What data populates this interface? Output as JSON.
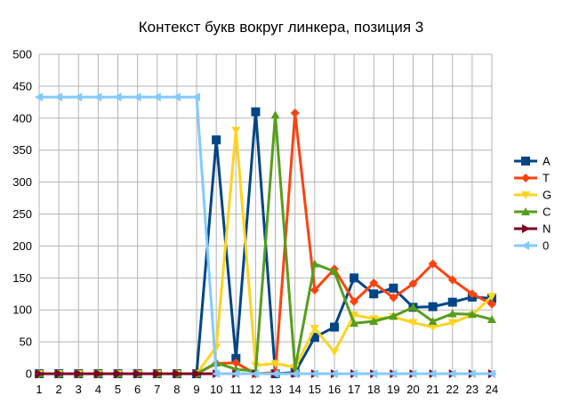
{
  "chart_data": {
    "type": "line",
    "title": "Контекст букв вокруг линкера, позиция 3",
    "xlabel": "",
    "ylabel": "",
    "x": [
      1,
      2,
      3,
      4,
      5,
      6,
      7,
      8,
      9,
      10,
      11,
      12,
      13,
      14,
      15,
      16,
      17,
      18,
      19,
      20,
      21,
      22,
      23,
      24
    ],
    "ylim": [
      0,
      500
    ],
    "yticks": [
      0,
      50,
      100,
      150,
      200,
      250,
      300,
      350,
      400,
      450,
      500
    ],
    "grid": true,
    "legend_position": "right",
    "series": [
      {
        "name": "A",
        "color": "#004586",
        "marker": "square",
        "values": [
          0,
          0,
          0,
          0,
          0,
          0,
          0,
          0,
          0,
          366,
          24,
          410,
          0,
          2,
          57,
          73,
          150,
          125,
          134,
          104,
          105,
          112,
          120,
          118
        ]
      },
      {
        "name": "T",
        "color": "#ff420e",
        "marker": "diamond",
        "values": [
          0,
          0,
          0,
          0,
          0,
          0,
          0,
          0,
          0,
          16,
          17,
          0,
          2,
          408,
          131,
          164,
          113,
          142,
          119,
          141,
          172,
          147,
          125,
          109
        ]
      },
      {
        "name": "G",
        "color": "#ffd320",
        "marker": "triangle-down",
        "values": [
          0,
          0,
          0,
          0,
          0,
          0,
          0,
          0,
          0,
          42,
          381,
          13,
          16,
          10,
          71,
          34,
          92,
          86,
          89,
          80,
          73,
          80,
          92,
          121
        ]
      },
      {
        "name": "C",
        "color": "#579d1c",
        "marker": "triangle-up",
        "values": [
          0,
          0,
          0,
          0,
          0,
          0,
          0,
          0,
          0,
          17,
          7,
          4,
          405,
          8,
          172,
          160,
          79,
          82,
          90,
          104,
          82,
          94,
          93,
          85
        ]
      },
      {
        "name": "N",
        "color": "#7e0021",
        "marker": "triangle-right",
        "values": [
          0,
          0,
          0,
          0,
          0,
          0,
          0,
          0,
          0,
          0,
          0,
          0,
          0,
          0,
          0,
          0,
          0,
          0,
          0,
          0,
          0,
          0,
          0,
          0
        ]
      },
      {
        "name": "0",
        "color": "#83caff",
        "marker": "triangle-left",
        "values": [
          433,
          433,
          433,
          433,
          433,
          433,
          433,
          433,
          433,
          0,
          0,
          0,
          0,
          0,
          0,
          0,
          0,
          0,
          0,
          0,
          0,
          0,
          0,
          0
        ]
      }
    ]
  }
}
